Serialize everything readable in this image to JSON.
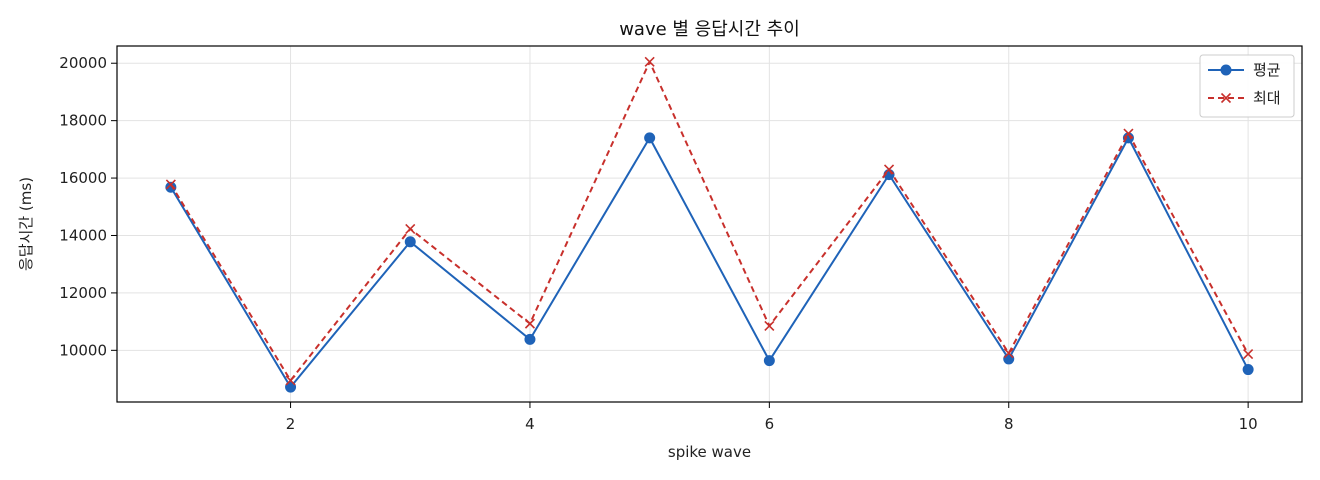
{
  "chart_data": {
    "type": "line",
    "title": "wave 별 응답시간 추이",
    "xlabel": "spike wave",
    "ylabel": "응답시간 (ms)",
    "xlim": [
      0.55,
      10.45
    ],
    "ylim": [
      8200,
      20600
    ],
    "xticks": [
      2,
      4,
      6,
      8,
      10
    ],
    "yticks": [
      10000,
      12000,
      14000,
      16000,
      18000,
      20000
    ],
    "grid": true,
    "legend_position": "top-right",
    "x": [
      1,
      2,
      3,
      4,
      5,
      6,
      7,
      8,
      9,
      10
    ],
    "series": [
      {
        "name": "평균",
        "values": [
          15680,
          8720,
          13780,
          10380,
          17400,
          9640,
          16120,
          9700,
          17400,
          9330
        ],
        "color": "#1f63b8",
        "line_style": "solid",
        "marker": "circle"
      },
      {
        "name": "최대",
        "values": [
          15780,
          8950,
          14230,
          10930,
          20050,
          10850,
          16300,
          9900,
          17550,
          9870
        ],
        "color": "#c8302c",
        "line_style": "dashed",
        "marker": "x"
      }
    ]
  }
}
